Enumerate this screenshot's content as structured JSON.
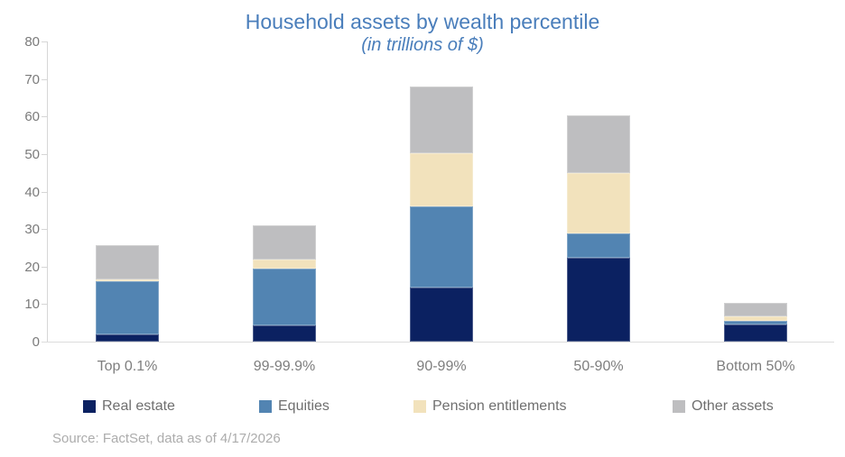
{
  "source": "Source: FactSet, data as of 4/17/2026",
  "colors": {
    "title_text": "#4A7EBB",
    "axis_line": "#D6D6D6",
    "axis_text": "#7B7B7B",
    "legend_text": "#6F6F6F",
    "source_text": "#ACACAC",
    "background": "#FFFFFF"
  },
  "chart_data": {
    "type": "bar",
    "stacked": true,
    "title": "Household assets by wealth percentile",
    "subtitle": "(in trillions of $)",
    "xlabel": "",
    "ylabel": "",
    "categories": [
      "Top 0.1%",
      "99-99.9%",
      "90-99%",
      "50-90%",
      "Bottom 50%"
    ],
    "series": [
      {
        "name": "Real estate",
        "color": "#0B2161",
        "values": [
          2.0,
          4.4,
          14.4,
          22.4,
          4.6
        ]
      },
      {
        "name": "Equities",
        "color": "#5284B2",
        "values": [
          14.0,
          15.1,
          21.6,
          6.5,
          0.9
        ]
      },
      {
        "name": "Pension entitlements",
        "color": "#F2E2BC",
        "values": [
          0.5,
          2.3,
          14.2,
          16.0,
          1.2
        ]
      },
      {
        "name": "Other assets",
        "color": "#BEBEC0",
        "values": [
          9.3,
          9.3,
          17.8,
          15.4,
          3.6
        ]
      }
    ],
    "stack_totals": [
      25.8,
      31.1,
      68.0,
      60.3,
      10.3
    ],
    "ylim": [
      0,
      80
    ],
    "yticks": [
      0,
      10,
      20,
      30,
      40,
      50,
      60,
      70,
      80
    ],
    "grid": false,
    "legend_position": "bottom"
  }
}
